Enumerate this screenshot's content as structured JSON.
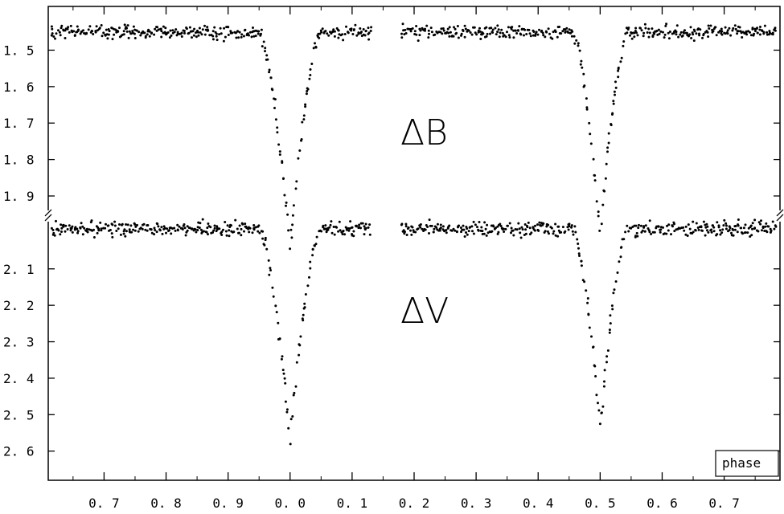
{
  "chart_data": {
    "type": "scatter",
    "title": "",
    "xlabel": "phase",
    "ylabel": "",
    "x_tick_labels": [
      "0. 7",
      "0. 8",
      "0. 9",
      "0. 0",
      "0. 1",
      "0. 2",
      "0. 3",
      "0. 4",
      "0. 5",
      "0. 6",
      "0. 7"
    ],
    "x_tick_phases": [
      0.7,
      0.8,
      0.9,
      1.0,
      1.1,
      1.2,
      1.3,
      1.4,
      1.5,
      1.6,
      1.7
    ],
    "xlim": [
      0.61,
      1.79
    ],
    "y_tick_labels": [
      "1. 5",
      "1. 6",
      "1. 7",
      "1. 8",
      "1. 9",
      "2. 1",
      "2. 2",
      "2. 3",
      "2. 4",
      "2. 5",
      "2. 6"
    ],
    "y_tick_values": [
      1.5,
      1.6,
      1.7,
      1.8,
      1.9,
      2.1,
      2.2,
      2.3,
      2.4,
      2.5,
      2.6
    ],
    "ylim": [
      1.38,
      2.68
    ],
    "y_axis_break": true,
    "y_axis_inverted": true,
    "phase_gaps": [
      [
        1.13,
        1.18
      ]
    ],
    "grid": false,
    "series": [
      {
        "name": "ΔB",
        "color": "#000000",
        "baseline": 1.45,
        "scatter": 0.018,
        "minima": [
          {
            "phase": 1.0,
            "depth": 2.04,
            "halfwidth": 0.05
          },
          {
            "phase": 1.5,
            "depth": 2.0,
            "halfwidth": 0.045
          }
        ]
      },
      {
        "name": "ΔV",
        "color": "#000000",
        "baseline": 1.99,
        "scatter": 0.018,
        "minima": [
          {
            "phase": 1.0,
            "depth": 2.57,
            "halfwidth": 0.05
          },
          {
            "phase": 1.5,
            "depth": 2.53,
            "halfwidth": 0.045
          }
        ]
      }
    ]
  }
}
